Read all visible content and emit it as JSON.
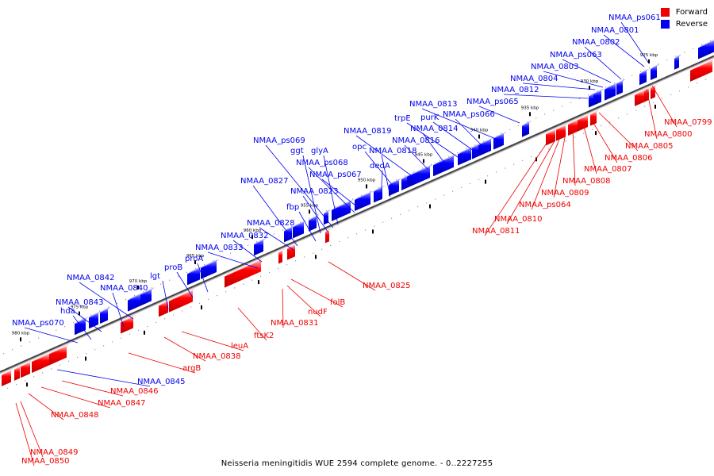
{
  "legend": {
    "forward_label": "Forward",
    "reverse_label": "Reverse",
    "forward_color": "#ee0000",
    "reverse_color": "#0000ee"
  },
  "caption": "Neisseria meningitidis WUE 2594 complete genome. - 0..2227255",
  "genome_view": {
    "ticks": [
      {
        "label": "925 kbp"
      },
      {
        "label": "930 kbp"
      },
      {
        "label": "935 kbp"
      },
      {
        "label": "940 kbp"
      },
      {
        "label": "945 kbp"
      },
      {
        "label": "950 kbp"
      },
      {
        "label": "955 kbp"
      },
      {
        "label": "960 kbp"
      },
      {
        "label": "965 kbp"
      },
      {
        "label": "970 kbp"
      },
      {
        "label": "975 kbp"
      },
      {
        "label": "980 kbp"
      }
    ],
    "reverse_genes": [
      "NMAA_ps061",
      "NMAA_0801",
      "NMAA_0802",
      "NMAA_ps063",
      "NMAA_0803",
      "NMAA_0804",
      "NMAA_0812",
      "NMAA_ps065",
      "NMAA_0813",
      "NMAA_ps066",
      "purK",
      "trpE",
      "NMAA_0814",
      "NMAA_0816",
      "NMAA_0819",
      "opc",
      "NMAA_0818",
      "dedA",
      "NMAA_ps069",
      "ggt",
      "glyA",
      "NMAA_ps068",
      "NMAA_ps067",
      "NMAA_0827",
      "NMAA_0823",
      "fbp",
      "NMAA_0828",
      "NMAA_0832",
      "NMAA_0833",
      "proA",
      "proB",
      "lgt",
      "NMAA_0842",
      "NMAA_0840",
      "NMAA_0843",
      "hda",
      "NMAA_ps070",
      "NMAA_0845"
    ],
    "forward_genes": [
      "NMAA_0799",
      "NMAA_0800",
      "NMAA_0805",
      "NMAA_0806",
      "NMAA_0807",
      "NMAA_0808",
      "NMAA_0809",
      "NMAA_ps064",
      "NMAA_0810",
      "NMAA_0811",
      "NMAA_0825",
      "folB",
      "nudF",
      "NMAA_0831",
      "ftsK2",
      "leuA",
      "NMAA_0838",
      "argB",
      "NMAA_0846",
      "NMAA_0847",
      "NMAA_0848",
      "NMAA_0849",
      "NMAA_0850"
    ]
  }
}
